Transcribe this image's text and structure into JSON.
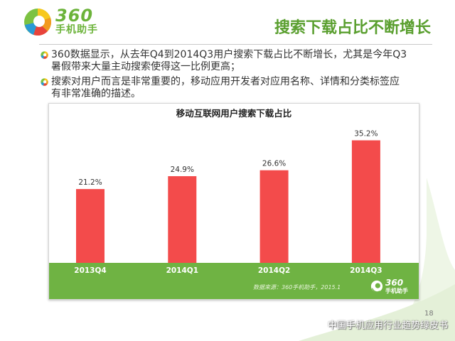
{
  "header": {
    "logo": {
      "icon": "360-ball-logo-icon",
      "number": "360",
      "name": "手机助手"
    },
    "title": "搜索下载占比不断增长"
  },
  "bullets": [
    {
      "icon": "360-ball-bullet-icon",
      "lines": [
        "360数据显示，从去年Q4到2014Q3用户搜索下载占比不断增长，尤其是今年Q3",
        "暑假带来大量主动搜索使得这一比例更高；"
      ]
    },
    {
      "icon": "360-ball-bullet-icon",
      "lines": [
        "搜索对用户而言是非常重要的，移动应用开发者对应用名称、详情和分类标签应",
        "有非常准确的描述。"
      ]
    }
  ],
  "chart_data": {
    "type": "bar",
    "title": "移动互联网用户搜索下载占比",
    "categories": [
      "2013Q4",
      "2014Q1",
      "2014Q2",
      "2014Q3"
    ],
    "values": [
      21.2,
      24.9,
      26.6,
      35.2
    ],
    "value_labels": [
      "21.2%",
      "24.9%",
      "26.6%",
      "35.2%"
    ],
    "xlabel": "",
    "ylabel": "",
    "grid": false,
    "legend": "none",
    "source": "数据来源：360手机助手，2015.1",
    "colors": {
      "bar": "#f34b4b",
      "band": "#6fb343"
    }
  },
  "footer": {
    "page_number": "18",
    "watermark": "中国手机应用行业趋势绿皮书"
  },
  "colors": {
    "brand_green": "#6cb33a",
    "title_green": "#5a9f2f",
    "text": "#333333",
    "background": "#ffffff"
  }
}
